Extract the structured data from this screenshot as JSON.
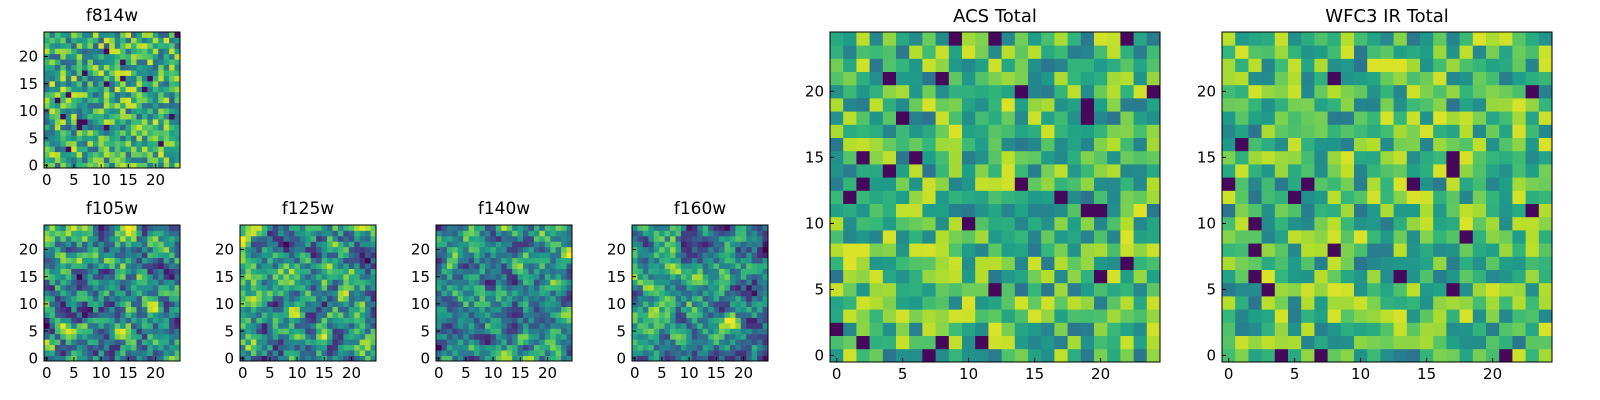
{
  "chart_data": [
    {
      "type": "heatmap",
      "title": "f814w",
      "xticks": [
        "0",
        "5",
        "10",
        "15",
        "20"
      ],
      "yticks": [
        "0",
        "5",
        "10",
        "15",
        "20"
      ],
      "xlim": [
        -0.5,
        24.5
      ],
      "ylim": [
        -0.5,
        24.5
      ],
      "grid_size": 25,
      "colormap": "viridis",
      "seed": 11,
      "mode": "noise"
    },
    {
      "type": "heatmap",
      "title": "f105w",
      "xticks": [
        "0",
        "5",
        "10",
        "15",
        "20"
      ],
      "yticks": [
        "0",
        "5",
        "10",
        "15",
        "20"
      ],
      "xlim": [
        -0.5,
        24.5
      ],
      "ylim": [
        -0.5,
        24.5
      ],
      "grid_size": 25,
      "colormap": "viridis",
      "seed": 23,
      "mode": "smooth"
    },
    {
      "type": "heatmap",
      "title": "f125w",
      "xticks": [
        "0",
        "5",
        "10",
        "15",
        "20"
      ],
      "yticks": [
        "0",
        "5",
        "10",
        "15",
        "20"
      ],
      "xlim": [
        -0.5,
        24.5
      ],
      "ylim": [
        -0.5,
        24.5
      ],
      "grid_size": 25,
      "colormap": "viridis",
      "seed": 37,
      "mode": "smooth"
    },
    {
      "type": "heatmap",
      "title": "f140w",
      "xticks": [
        "0",
        "5",
        "10",
        "15",
        "20"
      ],
      "yticks": [
        "0",
        "5",
        "10",
        "15",
        "20"
      ],
      "xlim": [
        -0.5,
        24.5
      ],
      "ylim": [
        -0.5,
        24.5
      ],
      "grid_size": 25,
      "colormap": "viridis",
      "seed": 41,
      "mode": "smooth"
    },
    {
      "type": "heatmap",
      "title": "f160w",
      "xticks": [
        "0",
        "5",
        "10",
        "15",
        "20"
      ],
      "yticks": [
        "0",
        "5",
        "10",
        "15",
        "20"
      ],
      "xlim": [
        -0.5,
        24.5
      ],
      "ylim": [
        -0.5,
        24.5
      ],
      "grid_size": 25,
      "colormap": "viridis",
      "seed": 53,
      "mode": "smooth"
    },
    {
      "type": "heatmap",
      "title": "ACS Total",
      "xticks": [
        "0",
        "5",
        "10",
        "15",
        "20"
      ],
      "yticks": [
        "0",
        "5",
        "10",
        "15",
        "20"
      ],
      "xlim": [
        -0.5,
        24.5
      ],
      "ylim": [
        -0.5,
        24.5
      ],
      "grid_size": 25,
      "colormap": "viridis",
      "seed": 67,
      "mode": "bright"
    },
    {
      "type": "heatmap",
      "title": "WFC3 IR Total",
      "xticks": [
        "0",
        "5",
        "10",
        "15",
        "20"
      ],
      "yticks": [
        "0",
        "5",
        "10",
        "15",
        "20"
      ],
      "xlim": [
        -0.5,
        24.5
      ],
      "ylim": [
        -0.5,
        24.5
      ],
      "grid_size": 25,
      "colormap": "viridis",
      "seed": 79,
      "mode": "bright"
    }
  ],
  "colors": {
    "axis": "#000000",
    "background": "#ffffff"
  }
}
